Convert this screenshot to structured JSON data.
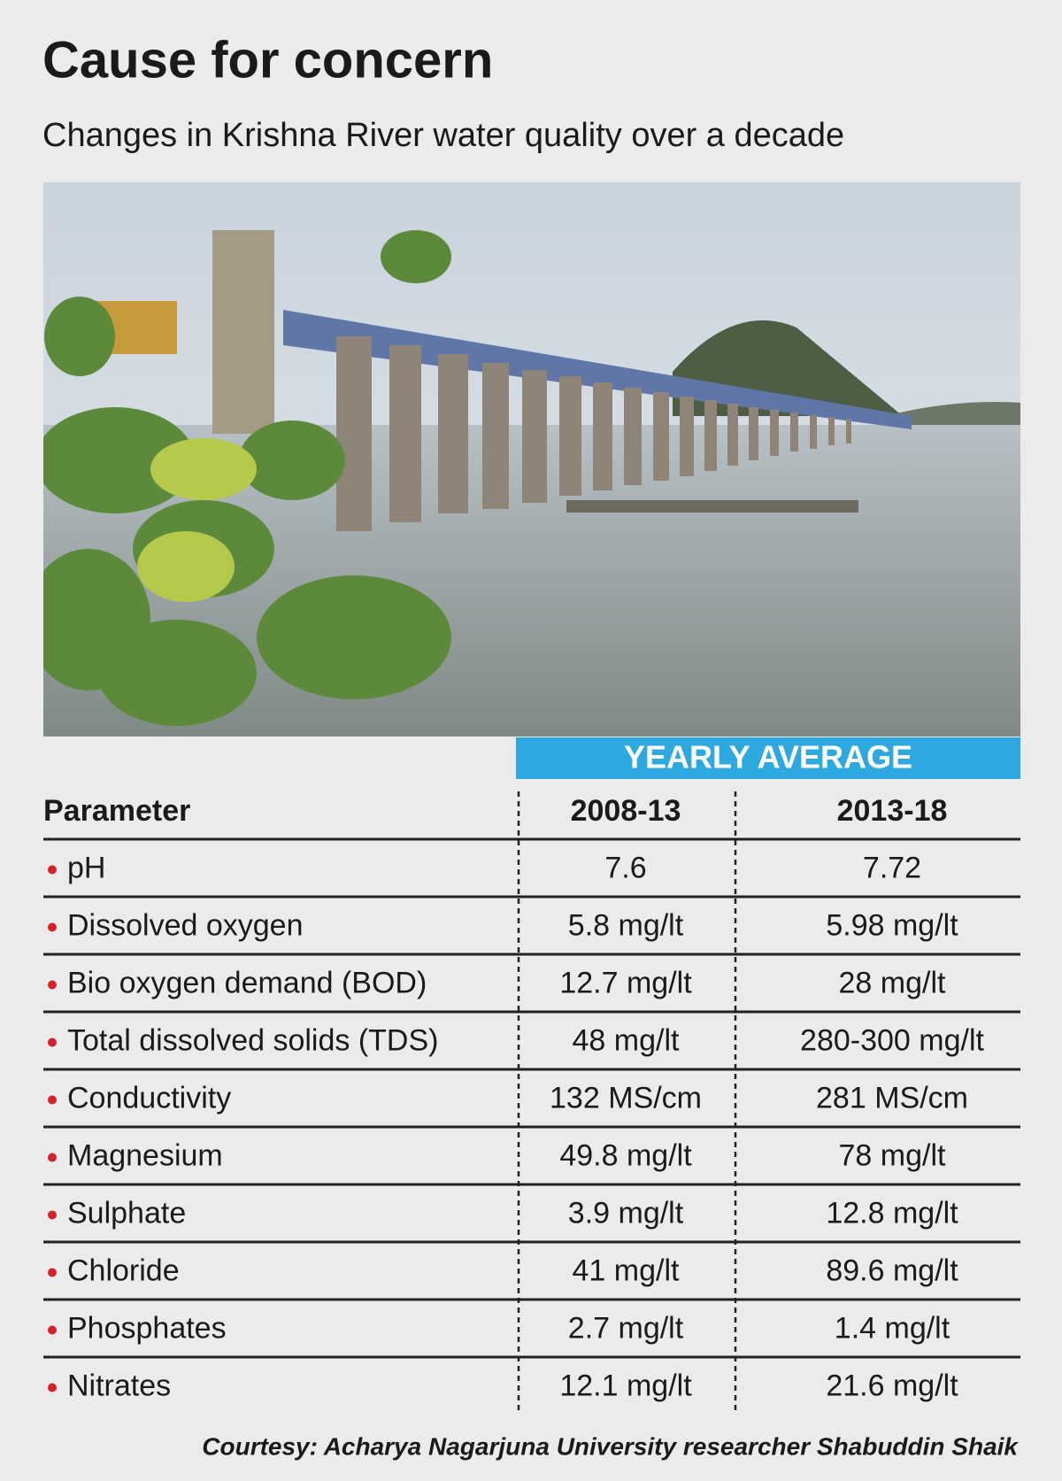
{
  "header": {
    "title": "Cause for concern",
    "subtitle": "Changes in Krishna River water quality over a decade"
  },
  "table": {
    "group_header": "YEARLY AVERAGE",
    "columns": [
      "Parameter",
      "2008-13",
      "2013-18"
    ],
    "rows": [
      [
        "pH",
        "7.6",
        "7.72"
      ],
      [
        "Dissolved oxygen",
        "5.8 mg/lt",
        "5.98 mg/lt"
      ],
      [
        "Bio oxygen demand (BOD)",
        "12.7 mg/lt",
        "28 mg/lt"
      ],
      [
        "Total dissolved solids (TDS)",
        "48 mg/lt",
        "280-300 mg/lt"
      ],
      [
        "Conductivity",
        "132 MS/cm",
        "281 MS/cm"
      ],
      [
        "Magnesium",
        "49.8 mg/lt",
        "78 mg/lt"
      ],
      [
        "Sulphate",
        "3.9 mg/lt",
        "12.8 mg/lt"
      ],
      [
        "Chloride",
        "41 mg/lt",
        "89.6 mg/lt"
      ],
      [
        "Phosphates",
        "2.7 mg/lt",
        "1.4 mg/lt"
      ],
      [
        "Nitrates",
        "12.1 mg/lt",
        "21.6 mg/lt"
      ]
    ]
  },
  "footer": {
    "courtesy": "Courtesy: Acharya Nagarjuna University researcher Shabuddin Shaik"
  }
}
